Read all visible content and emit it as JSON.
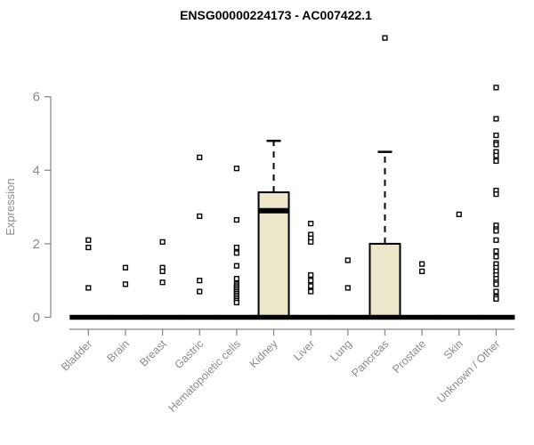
{
  "chart_data": {
    "type": "boxplot",
    "title": "ENSG00000224173 - AC007422.1",
    "ylabel": "Expression",
    "ylim": [
      0,
      6
    ],
    "yticks": [
      0,
      2,
      4,
      6
    ],
    "grid": false,
    "legend": "none",
    "categories": [
      "Bladder",
      "Brain",
      "Breast",
      "Gastric",
      "Hematopoietic cells",
      "Kidney",
      "Liver",
      "Lung",
      "Pancreas",
      "Prostate",
      "Skin",
      "Unknown / Other"
    ],
    "boxes": [
      {
        "category": "Bladder",
        "q1": 0,
        "median": 0,
        "q3": 0,
        "whisker_low": 0,
        "whisker_high": 0,
        "outliers": [
          2.1,
          1.9,
          0.8
        ]
      },
      {
        "category": "Brain",
        "q1": 0,
        "median": 0,
        "q3": 0,
        "whisker_low": 0,
        "whisker_high": 0,
        "outliers": [
          1.35,
          0.9
        ]
      },
      {
        "category": "Breast",
        "q1": 0,
        "median": 0,
        "q3": 0,
        "whisker_low": 0,
        "whisker_high": 0,
        "outliers": [
          2.05,
          1.35,
          1.25,
          0.95
        ]
      },
      {
        "category": "Gastric",
        "q1": 0,
        "median": 0,
        "q3": 0,
        "whisker_low": 0,
        "whisker_high": 0,
        "outliers": [
          4.35,
          2.75,
          1.0,
          0.7
        ]
      },
      {
        "category": "Hematopoietic cells",
        "q1": 0,
        "median": 0,
        "q3": 0,
        "whisker_low": 0,
        "whisker_high": 0,
        "outliers": [
          4.05,
          2.65,
          1.9,
          1.75,
          1.4,
          1.05,
          0.9,
          0.85,
          0.8,
          0.75,
          0.7,
          0.65,
          0.6,
          0.55,
          0.5,
          0.45,
          0.4
        ]
      },
      {
        "category": "Kidney",
        "q1": 0,
        "median": 2.9,
        "q3": 3.4,
        "whisker_low": 0,
        "whisker_high": 4.8,
        "outliers": []
      },
      {
        "category": "Liver",
        "q1": 0,
        "median": 0,
        "q3": 0,
        "whisker_low": 0,
        "whisker_high": 0,
        "outliers": [
          2.55,
          2.25,
          2.15,
          2.05,
          1.15,
          1.0,
          0.85,
          0.7
        ]
      },
      {
        "category": "Lung",
        "q1": 0,
        "median": 0,
        "q3": 0,
        "whisker_low": 0,
        "whisker_high": 0,
        "outliers": [
          1.55,
          0.8
        ]
      },
      {
        "category": "Pancreas",
        "q1": 0,
        "median": 0,
        "q3": 2.0,
        "whisker_low": 0,
        "whisker_high": 4.5,
        "outliers": [
          7.6
        ]
      },
      {
        "category": "Prostate",
        "q1": 0,
        "median": 0,
        "q3": 0,
        "whisker_low": 0,
        "whisker_high": 0,
        "outliers": [
          1.45,
          1.25
        ]
      },
      {
        "category": "Skin",
        "q1": 0,
        "median": 0,
        "q3": 0,
        "whisker_low": 0,
        "whisker_high": 0,
        "outliers": [
          2.8
        ]
      },
      {
        "category": "Unknown / Other",
        "q1": 0,
        "median": 0,
        "q3": 0,
        "whisker_low": 0,
        "whisker_high": 0,
        "outliers": [
          6.25,
          5.4,
          4.95,
          4.75,
          4.7,
          4.5,
          4.4,
          4.25,
          3.45,
          3.35,
          2.5,
          2.4,
          2.35,
          2.1,
          1.8,
          1.65,
          1.45,
          1.35,
          1.25,
          1.15,
          1.05,
          0.95,
          0.9,
          0.7,
          0.55,
          0.5
        ]
      }
    ],
    "colors": {
      "box_fill": "#ECE7CB",
      "box_stroke": "#000000",
      "axis": "#8B8B8B",
      "title_color": "#000000",
      "background": "#FFFFFF",
      "outlier_fill": "#FFFFFF"
    }
  }
}
